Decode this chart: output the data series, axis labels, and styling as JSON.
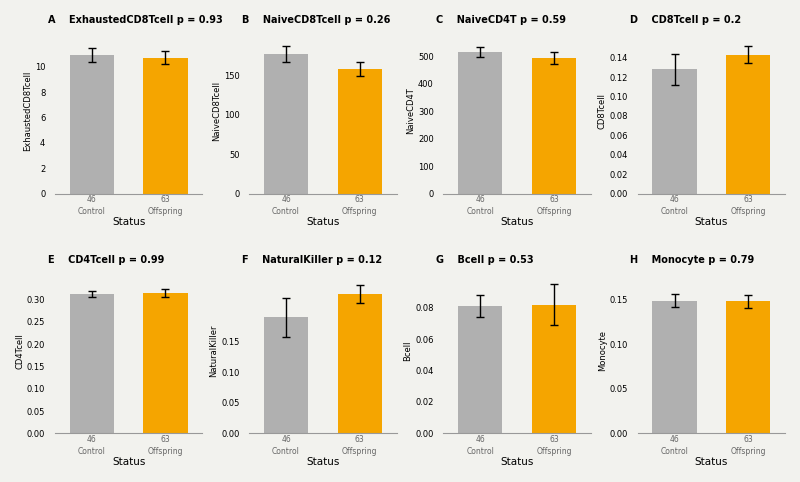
{
  "panels": [
    {
      "label": "A",
      "title": "ExhaustedCD8Tcell p = 0.93",
      "ylabel": "ExhaustedCD8Tcell",
      "control_mean": 10.9,
      "offspring_mean": 10.7,
      "control_err": 0.55,
      "offspring_err": 0.5,
      "ylim": [
        0,
        13
      ],
      "yticks": [
        0,
        2,
        4,
        6,
        8,
        10
      ]
    },
    {
      "label": "B",
      "title": "NaiveCD8Tcell p = 0.26",
      "ylabel": "NaiveCD8Tcell",
      "control_mean": 178,
      "offspring_mean": 158,
      "control_err": 10,
      "offspring_err": 9,
      "ylim": [
        0,
        210
      ],
      "yticks": [
        0,
        50,
        100,
        150
      ]
    },
    {
      "label": "C",
      "title": "NaiveCD4T p = 0.59",
      "ylabel": "NaiveCD4T",
      "control_mean": 515,
      "offspring_mean": 493,
      "control_err": 18,
      "offspring_err": 22,
      "ylim": [
        0,
        600
      ],
      "yticks": [
        0,
        100,
        200,
        300,
        400,
        500
      ]
    },
    {
      "label": "D",
      "title": "CD8Tcell p = 0.2",
      "ylabel": "CD8Tcell",
      "control_mean": 0.128,
      "offspring_mean": 0.143,
      "control_err": 0.016,
      "offspring_err": 0.009,
      "ylim": [
        0,
        0.17
      ],
      "yticks": [
        0.0,
        0.02,
        0.04,
        0.06,
        0.08,
        0.1,
        0.12,
        0.14
      ]
    },
    {
      "label": "E",
      "title": "CD4Tcell p = 0.99",
      "ylabel": "CD4Tcell",
      "control_mean": 0.312,
      "offspring_mean": 0.315,
      "control_err": 0.007,
      "offspring_err": 0.009,
      "ylim": [
        0,
        0.37
      ],
      "yticks": [
        0.0,
        0.05,
        0.1,
        0.15,
        0.2,
        0.25,
        0.3
      ]
    },
    {
      "label": "F",
      "title": "NaturalKiller p = 0.12",
      "ylabel": "NaturalKiller",
      "control_mean": 0.19,
      "offspring_mean": 0.228,
      "control_err": 0.032,
      "offspring_err": 0.015,
      "ylim": [
        0,
        0.27
      ],
      "yticks": [
        0.0,
        0.05,
        0.1,
        0.15
      ]
    },
    {
      "label": "G",
      "title": "Bcell p = 0.53",
      "ylabel": "Bcell",
      "control_mean": 0.081,
      "offspring_mean": 0.082,
      "control_err": 0.007,
      "offspring_err": 0.013,
      "ylim": [
        0,
        0.105
      ],
      "yticks": [
        0.0,
        0.02,
        0.04,
        0.06,
        0.08
      ]
    },
    {
      "label": "H",
      "title": "Monocyte p = 0.79",
      "ylabel": "Monocyte",
      "control_mean": 0.149,
      "offspring_mean": 0.148,
      "control_err": 0.007,
      "offspring_err": 0.007,
      "ylim": [
        0,
        0.185
      ],
      "yticks": [
        0.0,
        0.05,
        0.1,
        0.15
      ]
    }
  ],
  "control_color": "#b0b0b0",
  "offspring_color": "#f5a500",
  "n_control": 46,
  "n_offspring": 63,
  "xlabel": "Status",
  "bar_width": 0.6,
  "background_color": "#f2f2ee"
}
